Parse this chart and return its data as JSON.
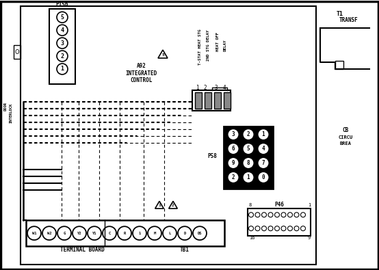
{
  "bg_color": "#ffffff",
  "line_color": "#000000",
  "fig_width": 5.54,
  "fig_height": 3.95,
  "dpi": 100,
  "p156_label": "P156",
  "p156_pins": [
    "5",
    "4",
    "3",
    "2",
    "1"
  ],
  "a92_lines": [
    "A92",
    "INTEGRATED",
    "CONTROL"
  ],
  "vert_labels": [
    "T-STAT HEAT STG",
    "2ND STG DELAY",
    "HEAT OFF",
    "DELAY"
  ],
  "conn_nums": [
    "1",
    "2",
    "3",
    "4"
  ],
  "p58_label": "P58",
  "p58_pins": [
    [
      "3",
      "2",
      "1"
    ],
    [
      "6",
      "5",
      "4"
    ],
    [
      "9",
      "8",
      "7"
    ],
    [
      "2",
      "1",
      "0"
    ]
  ],
  "p46_label": "P46",
  "p46_top_nums": [
    "8",
    "1"
  ],
  "p46_bot_nums": [
    "16",
    "9"
  ],
  "tb_labels": [
    "W1",
    "W2",
    "G",
    "Y2",
    "Y1",
    "C",
    "R",
    "1",
    "M",
    "L",
    "D",
    "DS"
  ],
  "tb_text": [
    "TERMINAL BOARD",
    "TB1"
  ],
  "t1_lines": [
    "T1",
    "TRANSF"
  ],
  "cb_lines": [
    "CB",
    "CIRCU",
    "BREA"
  ],
  "warn_nums": [
    "1",
    "2"
  ]
}
